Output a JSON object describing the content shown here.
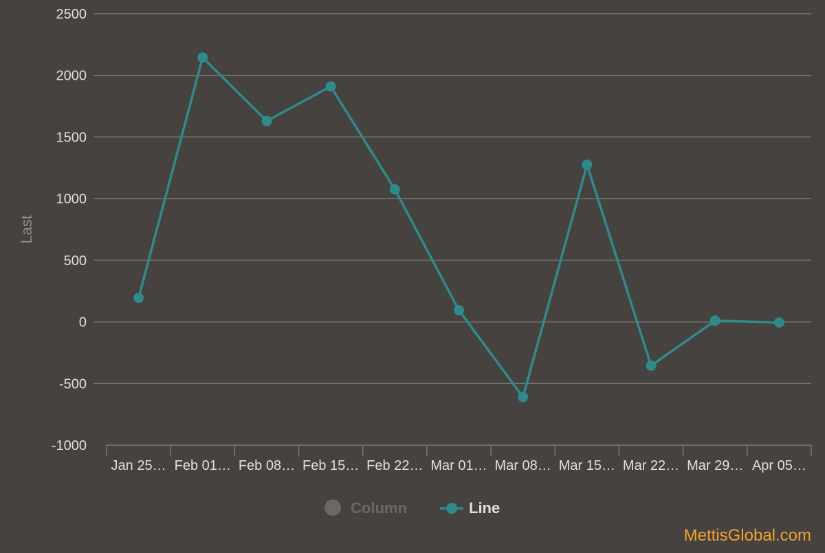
{
  "chart_data": {
    "type": "line",
    "title": "",
    "xlabel": "",
    "ylabel": "Last",
    "categories": [
      "Jan 25…",
      "Feb 01…",
      "Feb 08…",
      "Feb 15…",
      "Feb 22…",
      "Mar 01…",
      "Mar 08…",
      "Mar 15…",
      "Mar 22…",
      "Mar 29…",
      "Apr 05…"
    ],
    "series": [
      {
        "name": "Line",
        "values": [
          195,
          2145,
          1630,
          1910,
          1075,
          95,
          -610,
          1275,
          -355,
          10,
          -5
        ]
      }
    ],
    "ylim": [
      -1000,
      2500
    ],
    "yticks": [
      -1000,
      -500,
      0,
      500,
      1000,
      1500,
      2000,
      2500
    ],
    "grid": true,
    "legend_position": "bottom-center",
    "legend": [
      {
        "name": "Column",
        "state": "hidden"
      },
      {
        "name": "Line",
        "state": "visible"
      }
    ]
  },
  "watermark": "MettisGlobal.com",
  "colors": {
    "background": "#46423f",
    "line": "#2e8b8b",
    "grid": "#7a7673",
    "text": "#e0e0e0",
    "axis_title": "#8f8b88",
    "legend_inactive": "#6a6765",
    "watermark": "#f4a030"
  }
}
